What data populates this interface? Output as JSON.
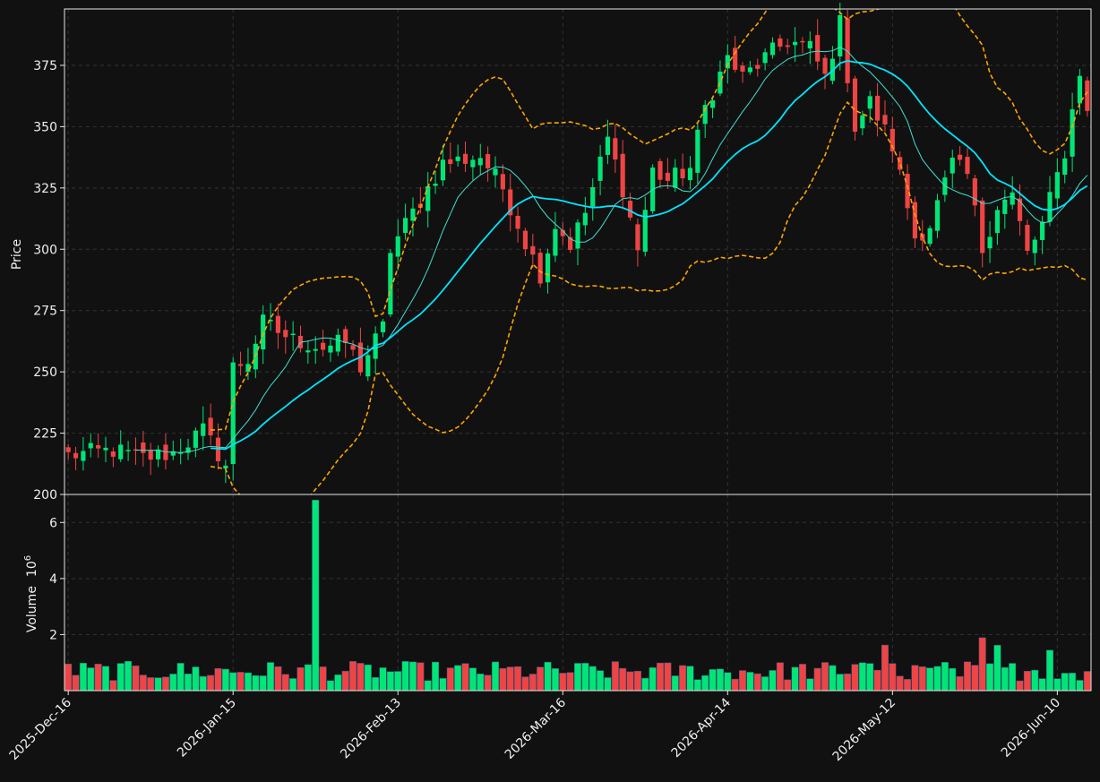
{
  "chart_data": {
    "type": "candlestick",
    "panels": [
      "price",
      "volume"
    ],
    "price_axis": {
      "ylabel": "Price",
      "ylim": [
        200,
        398
      ],
      "ticks": [
        "200",
        "225",
        "250",
        "275",
        "300",
        "325",
        "350",
        "375"
      ],
      "grid": true
    },
    "volume_axis": {
      "ylabel": "Volume",
      "multiplier_label": "10",
      "multiplier_exp": "6",
      "ylim": [
        0,
        7.0
      ],
      "ticks": [
        "2",
        "4",
        "6"
      ],
      "grid": true
    },
    "x_tick_labels": [
      "2025-Dec-16",
      "2026-Jan-15",
      "2026-Feb-13",
      "2026-Mar-16",
      "2026-Apr-14",
      "2026-May-12",
      "2026-Jun-10"
    ],
    "x_tick_index": [
      0,
      22,
      44,
      66,
      88,
      110,
      132
    ],
    "n_bars": 137,
    "colors": {
      "up": "#00e676",
      "down": "#ef4444",
      "background": "#111111",
      "grid": "#333333",
      "ma_fast": "#40e0d0",
      "ma_slow": "#00e5ff",
      "bands": "#ffa500"
    },
    "anchors": [
      [
        0,
        216
      ],
      [
        6,
        218
      ],
      [
        10,
        215
      ],
      [
        14,
        217
      ],
      [
        18,
        226
      ],
      [
        21,
        212
      ],
      [
        22,
        252
      ],
      [
        24,
        255
      ],
      [
        26,
        270
      ],
      [
        30,
        263
      ],
      [
        34,
        260
      ],
      [
        37,
        262
      ],
      [
        39,
        252
      ],
      [
        42,
        268
      ],
      [
        43,
        300
      ],
      [
        46,
        315
      ],
      [
        50,
        335
      ],
      [
        55,
        338
      ],
      [
        58,
        325
      ],
      [
        61,
        303
      ],
      [
        63,
        290
      ],
      [
        65,
        310
      ],
      [
        67,
        302
      ],
      [
        69,
        315
      ],
      [
        72,
        345
      ],
      [
        74,
        325
      ],
      [
        76,
        300
      ],
      [
        78,
        332
      ],
      [
        80,
        328
      ],
      [
        83,
        333
      ],
      [
        85,
        358
      ],
      [
        88,
        378
      ],
      [
        90,
        370
      ],
      [
        93,
        378
      ],
      [
        96,
        385
      ],
      [
        99,
        382
      ],
      [
        101,
        370
      ],
      [
        103,
        392
      ],
      [
        105,
        350
      ],
      [
        107,
        360
      ],
      [
        110,
        342
      ],
      [
        111,
        330
      ],
      [
        113,
        305
      ],
      [
        115,
        310
      ],
      [
        118,
        335
      ],
      [
        120,
        330
      ],
      [
        122,
        300
      ],
      [
        124,
        318
      ],
      [
        126,
        322
      ],
      [
        128,
        298
      ],
      [
        130,
        310
      ],
      [
        133,
        340
      ],
      [
        135,
        373
      ],
      [
        136,
        355
      ]
    ],
    "volume_spike": {
      "index": 33,
      "value": 6.8
    },
    "indicators": [
      "MA fast",
      "MA slow",
      "Bollinger upper",
      "Bollinger lower"
    ]
  }
}
